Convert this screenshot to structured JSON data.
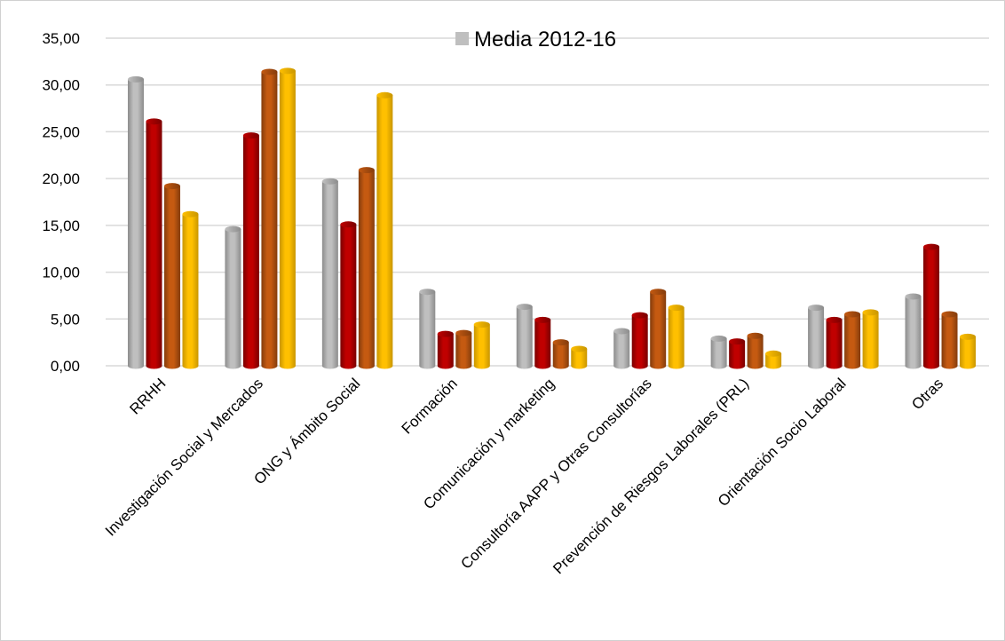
{
  "chart_data": {
    "type": "bar",
    "title": "",
    "xlabel": "",
    "ylabel": "",
    "ylim": [
      0,
      35
    ],
    "y_ticks": [
      "0,00",
      "5,00",
      "10,00",
      "15,00",
      "20,00",
      "25,00",
      "30,00",
      "35,00"
    ],
    "grid": true,
    "legend_position": "top-center",
    "categories": [
      "RRHH",
      "Investigación Social y Mercados",
      "ONG y Ámbito Social",
      "Formación",
      "Comunicación y marketing",
      "Consultoría AAPP y Otras Consultorías",
      "Prevención de Riesgos Laborales (PRL)",
      "Orientación Socio Laboral",
      "Otras"
    ],
    "series": [
      {
        "name": "Media 2012-16",
        "color": "#bfbfbf",
        "shade": "#8c8c8c",
        "values": [
          30.6,
          14.6,
          19.7,
          7.9,
          6.3,
          3.7,
          2.9,
          6.2,
          7.4
        ]
      },
      {
        "color": "#c00000",
        "shade": "#7a0000",
        "values": [
          26.1,
          24.6,
          15.1,
          3.4,
          4.9,
          5.4,
          2.6,
          4.9,
          12.7
        ]
      },
      {
        "color": "#c55a11",
        "shade": "#843c0c",
        "values": [
          19.2,
          31.4,
          20.9,
          3.5,
          2.5,
          7.9,
          3.2,
          5.5,
          5.5
        ]
      },
      {
        "color": "#ffc000",
        "shade": "#c99600",
        "values": [
          16.2,
          31.5,
          28.9,
          4.4,
          1.8,
          6.2,
          1.3,
          5.7,
          3.1
        ]
      }
    ]
  }
}
